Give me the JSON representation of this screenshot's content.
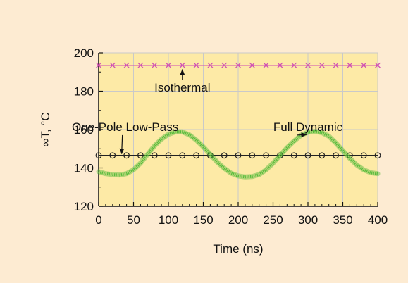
{
  "chart_data": {
    "type": "line",
    "xlabel": "Time (ns)",
    "ylabel": "∞T, °C",
    "xlim": [
      0,
      400
    ],
    "ylim": [
      120,
      200
    ],
    "x_ticks": [
      "0",
      "50",
      "100",
      "150",
      "200",
      "250",
      "300",
      "350",
      "400"
    ],
    "y_ticks": [
      "120",
      "140",
      "160",
      "180",
      "200"
    ],
    "grid": true,
    "legend": "none",
    "colors": {
      "page_background": "#fdebd2",
      "plot_background": "#fdeaa6",
      "grid": "#c9c9c9",
      "isothermal": "#d04fb3",
      "one_pole": "#222222",
      "full_dynamic": "#55bb3a"
    },
    "series": [
      {
        "name": "Isothermal",
        "marker": "x",
        "x": [
          0,
          20,
          40,
          60,
          80,
          100,
          120,
          140,
          160,
          180,
          200,
          220,
          240,
          260,
          280,
          300,
          320,
          340,
          360,
          380,
          400
        ],
        "values": [
          193.5,
          193.5,
          193.5,
          193.5,
          193.5,
          193.5,
          193.5,
          193.5,
          193.5,
          193.5,
          193.5,
          193.5,
          193.5,
          193.5,
          193.5,
          193.5,
          193.5,
          193.5,
          193.5,
          193.5,
          193.5
        ]
      },
      {
        "name": "One-Pole Low-Pass",
        "marker": "circle",
        "x": [
          0,
          20,
          40,
          60,
          80,
          100,
          120,
          140,
          160,
          180,
          200,
          220,
          240,
          260,
          280,
          300,
          320,
          340,
          360,
          380,
          400
        ],
        "values": [
          146.5,
          146.5,
          146.5,
          146.5,
          146.5,
          146.5,
          146.5,
          146.5,
          146.5,
          146.5,
          146.5,
          146.5,
          146.5,
          146.5,
          146.5,
          146.5,
          146.5,
          146.5,
          146.5,
          146.5,
          146.5
        ]
      },
      {
        "name": "Full Dynamic",
        "marker": "none",
        "x": [
          0,
          10,
          20,
          30,
          40,
          50,
          60,
          70,
          80,
          90,
          100,
          110,
          120,
          130,
          140,
          150,
          160,
          170,
          180,
          190,
          200,
          210,
          220,
          230,
          240,
          250,
          260,
          270,
          280,
          290,
          300,
          310,
          320,
          330,
          340,
          350,
          360,
          370,
          380,
          390,
          400
        ],
        "values": [
          138,
          137,
          136.5,
          136.3,
          137,
          139,
          142.5,
          147,
          151.5,
          155,
          157.5,
          158.8,
          158.8,
          157.2,
          154.5,
          151,
          147,
          143,
          139.8,
          137.2,
          135.8,
          135.3,
          135.5,
          136.5,
          139,
          142.5,
          146.5,
          150.5,
          154,
          157,
          158.6,
          159,
          158.4,
          156.5,
          153,
          149,
          145,
          141.5,
          139,
          137.5,
          137
        ]
      }
    ],
    "annotations": [
      {
        "text": "Isothermal",
        "x": 120,
        "y": 182,
        "arrow_to": [
          120,
          193.5
        ]
      },
      {
        "text": "One-Pole Low-Pass",
        "x": 38,
        "y": 161.5,
        "arrow_to": [
          33,
          147
        ]
      },
      {
        "text": "Full Dynamic",
        "x": 300,
        "y": 161.5,
        "arrow_to": [
          298,
          157
        ]
      }
    ]
  }
}
